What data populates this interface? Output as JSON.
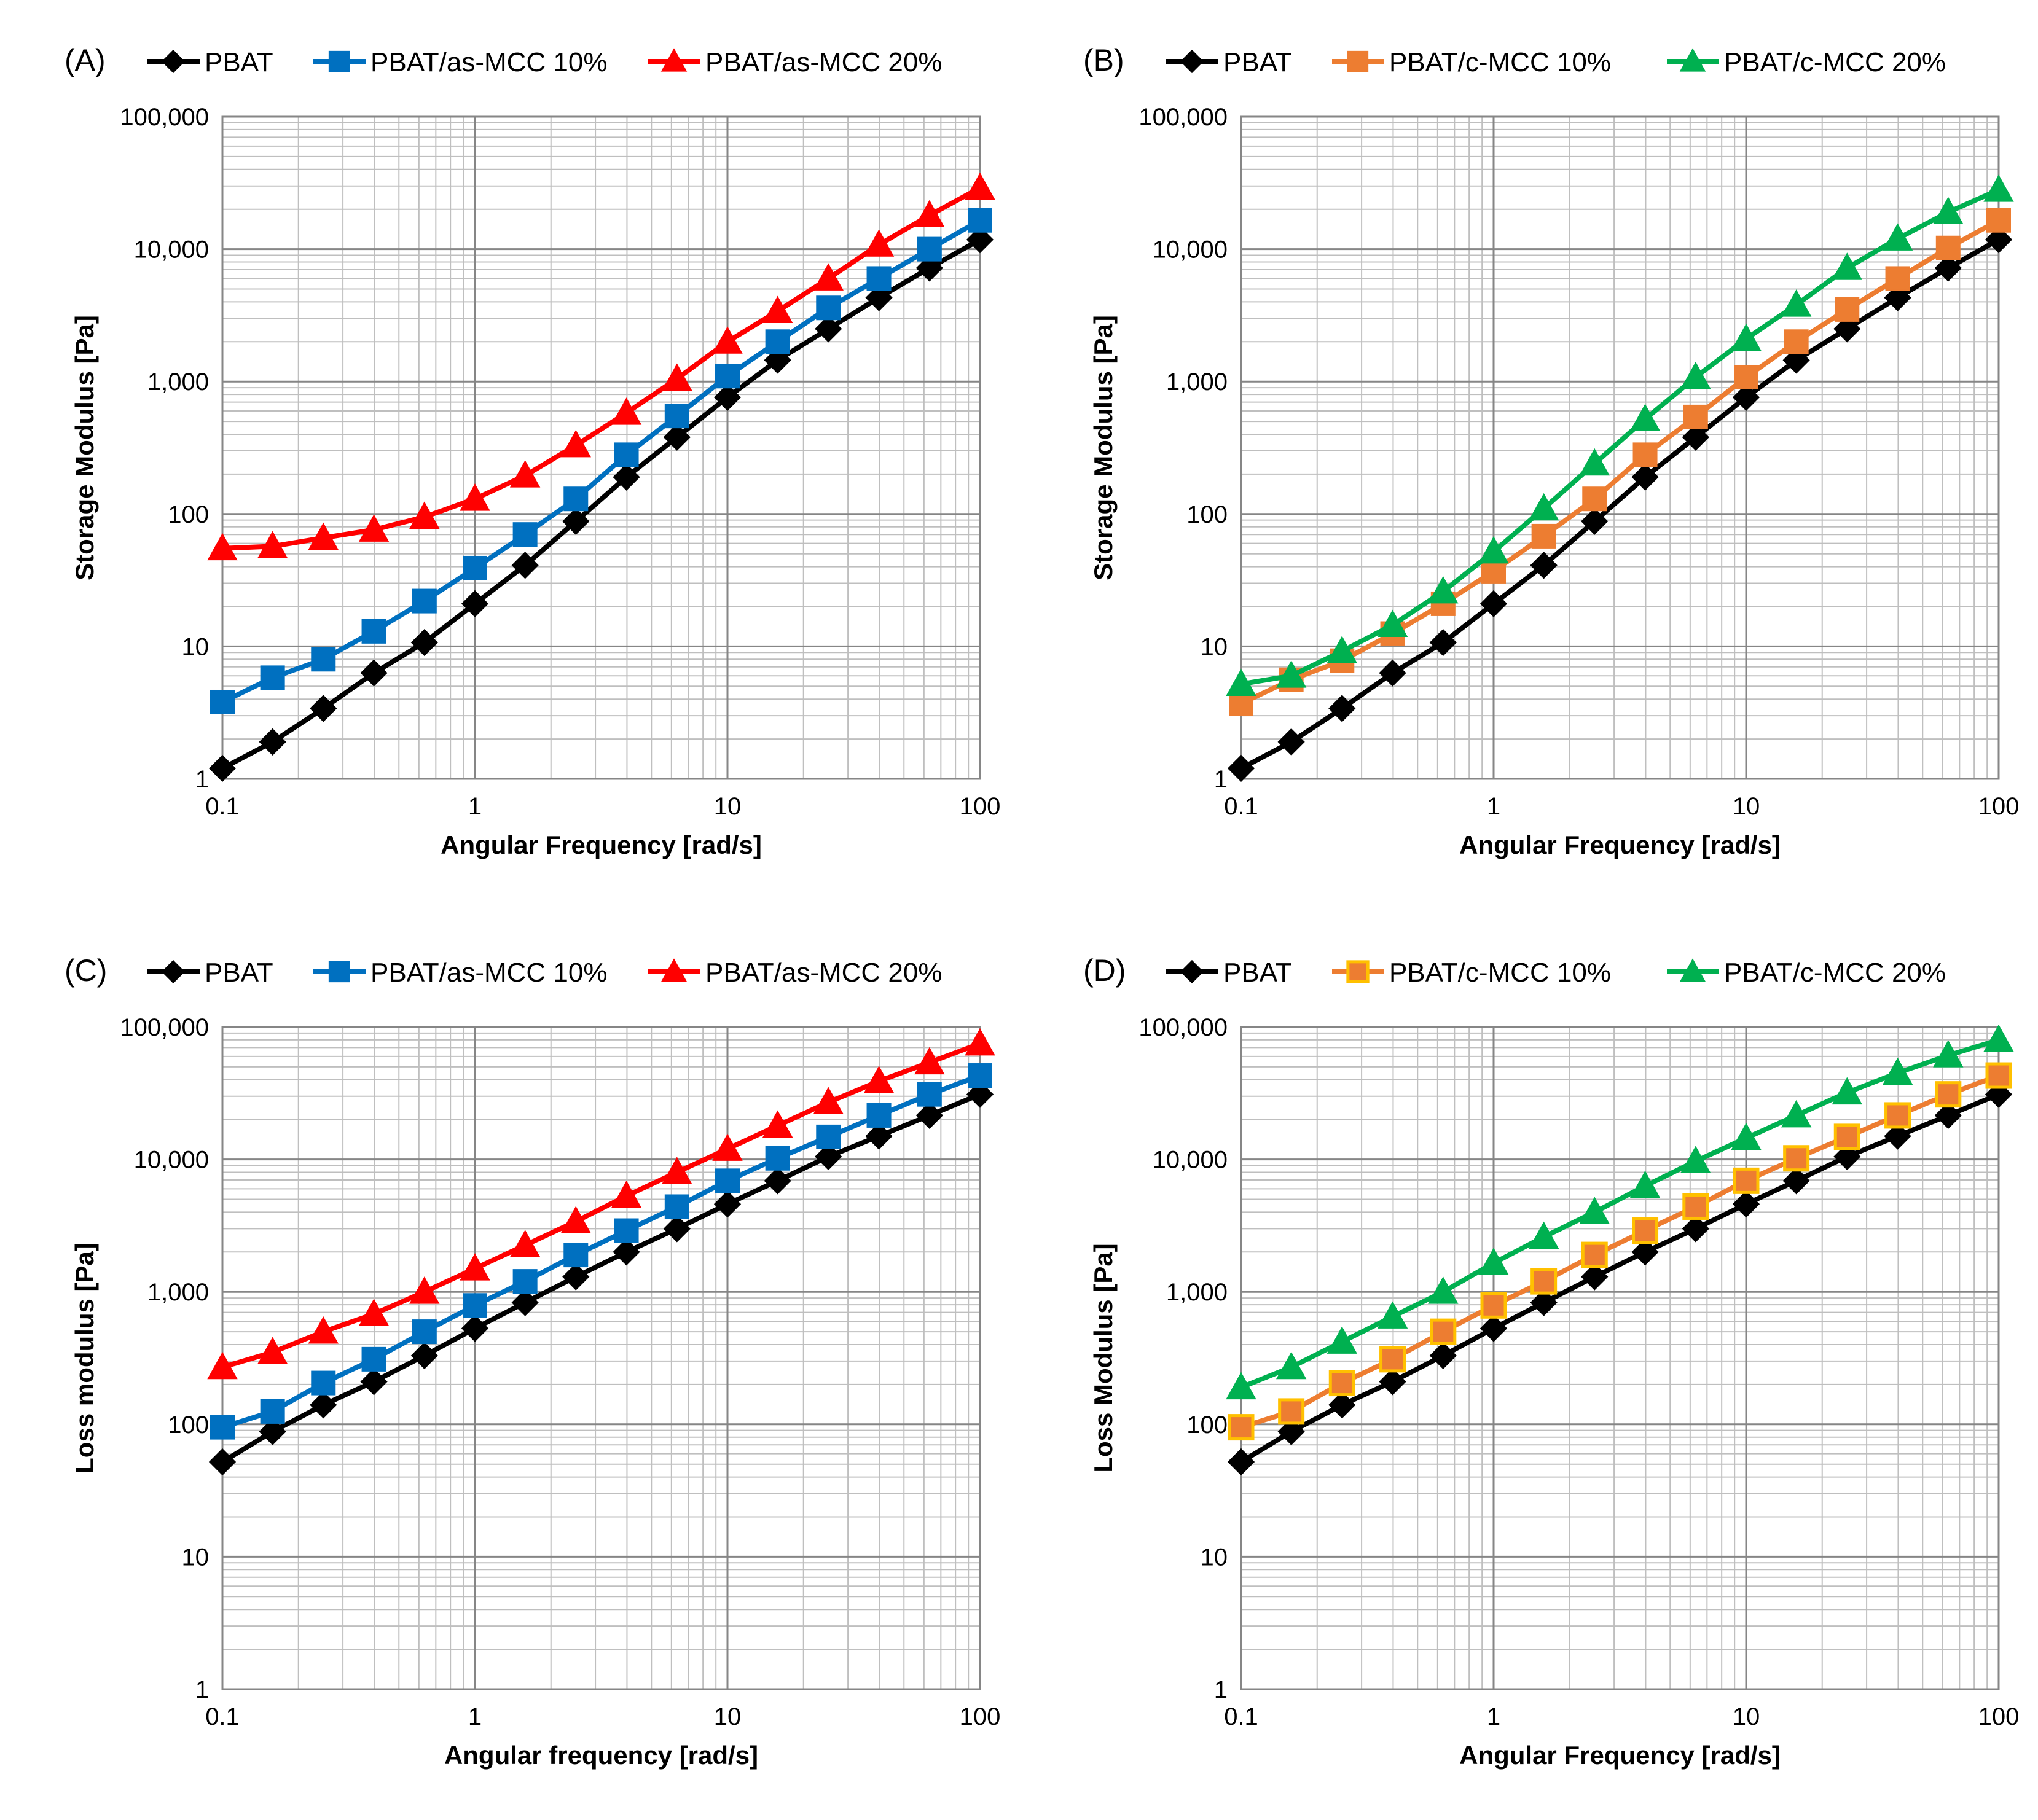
{
  "chart_data": [
    {
      "type": "line",
      "panel_label": "(A)",
      "xlabel": "Angular Frequency [rad/s]",
      "ylabel": "Storage Modulus [Pa]",
      "xscale": "log",
      "yscale": "log",
      "xlim": [
        0.1,
        100
      ],
      "ylim": [
        1,
        100000
      ],
      "xtick_labels": [
        "0.1",
        "1",
        "10",
        "100"
      ],
      "ytick_labels": [
        "1",
        "10",
        "100",
        "1,000",
        "10,000",
        "100,000"
      ],
      "grid": true,
      "legend_position": "top",
      "x": [
        0.1,
        0.158,
        0.251,
        0.398,
        0.631,
        1,
        1.58,
        2.51,
        3.98,
        6.31,
        10,
        15.8,
        25.1,
        39.8,
        63.1,
        100
      ],
      "series": [
        {
          "name": "PBAT",
          "color": "#000000",
          "marker": "diamond",
          "values": [
            1.2,
            1.9,
            3.4,
            6.3,
            10.7,
            21,
            41,
            88,
            190,
            380,
            760,
            1450,
            2500,
            4300,
            7200,
            11800
          ]
        },
        {
          "name": "PBAT/as-MCC 10%",
          "color": "#0070C0",
          "marker": "square",
          "values": [
            3.8,
            5.8,
            8,
            13,
            22,
            39,
            70,
            130,
            280,
            550,
            1100,
            2000,
            3600,
            6000,
            10000,
            16500
          ]
        },
        {
          "name": "PBAT/as-MCC 20%",
          "color": "#FF0000",
          "marker": "triangle",
          "values": [
            55,
            57,
            66,
            76,
            95,
            130,
            195,
            330,
            580,
            1050,
            2000,
            3400,
            6000,
            10800,
            18000,
            29000
          ]
        }
      ]
    },
    {
      "type": "line",
      "panel_label": "(B)",
      "xlabel": "Angular Frequency [rad/s]",
      "ylabel": "Storage Modulus [Pa]",
      "xscale": "log",
      "yscale": "log",
      "xlim": [
        0.1,
        100
      ],
      "ylim": [
        1,
        100000
      ],
      "xtick_labels": [
        "0.1",
        "1",
        "10",
        "100"
      ],
      "ytick_labels": [
        "1",
        "10",
        "100",
        "1,000",
        "10,000",
        "100,000"
      ],
      "grid": true,
      "legend_position": "top",
      "x": [
        0.1,
        0.158,
        0.251,
        0.398,
        0.631,
        1,
        1.58,
        2.51,
        3.98,
        6.31,
        10,
        15.8,
        25.1,
        39.8,
        63.1,
        100
      ],
      "series": [
        {
          "name": "PBAT",
          "color": "#000000",
          "marker": "diamond",
          "values": [
            1.2,
            1.9,
            3.4,
            6.3,
            10.7,
            21,
            41,
            88,
            190,
            380,
            760,
            1450,
            2500,
            4300,
            7200,
            11800
          ]
        },
        {
          "name": "PBAT/c-MCC 10%",
          "color": "#ED7D31",
          "marker": "square",
          "values": [
            3.7,
            5.6,
            7.8,
            12.5,
            21,
            37,
            68,
            130,
            280,
            540,
            1080,
            2000,
            3500,
            6000,
            10200,
            16500
          ]
        },
        {
          "name": "PBAT/c-MCC 20%",
          "color": "#00B050",
          "marker": "triangle",
          "values": [
            5.2,
            6,
            9.2,
            14.5,
            26,
            52,
            110,
            240,
            520,
            1080,
            2100,
            3800,
            7200,
            12000,
            19000,
            28000
          ]
        }
      ]
    },
    {
      "type": "line",
      "panel_label": "(C)",
      "xlabel": "Angular frequency [rad/s]",
      "ylabel": "Loss modulus [Pa]",
      "xscale": "log",
      "yscale": "log",
      "xlim": [
        0.1,
        100
      ],
      "ylim": [
        1,
        100000
      ],
      "xtick_labels": [
        "0.1",
        "1",
        "10",
        "100"
      ],
      "ytick_labels": [
        "1",
        "10",
        "100",
        "1,000",
        "10,000",
        "100,000"
      ],
      "grid": true,
      "legend_position": "top",
      "x": [
        0.1,
        0.158,
        0.251,
        0.398,
        0.631,
        1,
        1.58,
        2.51,
        3.98,
        6.31,
        10,
        15.8,
        25.1,
        39.8,
        63.1,
        100
      ],
      "series": [
        {
          "name": "PBAT",
          "color": "#000000",
          "marker": "diamond",
          "values": [
            52,
            88,
            140,
            210,
            330,
            530,
            830,
            1300,
            2000,
            3000,
            4600,
            6900,
            10500,
            15000,
            21500,
            31000
          ]
        },
        {
          "name": "PBAT/as-MCC 10%",
          "color": "#0070C0",
          "marker": "square",
          "values": [
            95,
            125,
            205,
            310,
            500,
            790,
            1200,
            1900,
            2900,
            4400,
            6900,
            10200,
            14800,
            21500,
            31000,
            43000
          ]
        },
        {
          "name": "PBAT/as-MCC 20%",
          "color": "#FF0000",
          "marker": "triangle",
          "values": [
            270,
            350,
            500,
            680,
            1000,
            1500,
            2250,
            3400,
            5300,
            8000,
            12000,
            18000,
            27000,
            39000,
            54000,
            75000
          ]
        }
      ]
    },
    {
      "type": "line",
      "panel_label": "(D)",
      "xlabel": "Angular Frequency [rad/s]",
      "ylabel": "Loss Modulus [Pa]",
      "xscale": "log",
      "yscale": "log",
      "xlim": [
        0.1,
        100
      ],
      "ylim": [
        1,
        100000
      ],
      "xtick_labels": [
        "0.1",
        "1",
        "10",
        "100"
      ],
      "ytick_labels": [
        "1",
        "10",
        "100",
        "1,000",
        "10,000",
        "100,000"
      ],
      "grid": true,
      "legend_position": "top",
      "x": [
        0.1,
        0.158,
        0.251,
        0.398,
        0.631,
        1,
        1.58,
        2.51,
        3.98,
        6.31,
        10,
        15.8,
        25.1,
        39.8,
        63.1,
        100
      ],
      "series": [
        {
          "name": "PBAT",
          "color": "#000000",
          "marker": "diamond",
          "values": [
            52,
            88,
            140,
            210,
            330,
            530,
            830,
            1300,
            2000,
            3000,
            4600,
            6900,
            10500,
            15000,
            21500,
            31000
          ]
        },
        {
          "name": "PBAT/c-MCC 10%",
          "color": "#ED7D31",
          "marker": "square",
          "marker_edge": "#FFC000",
          "values": [
            95,
            125,
            205,
            310,
            500,
            790,
            1200,
            1900,
            2900,
            4400,
            6900,
            10200,
            14800,
            21500,
            31000,
            43000
          ]
        },
        {
          "name": "PBAT/c-MCC 20%",
          "color": "#00B050",
          "marker": "triangle",
          "values": [
            190,
            270,
            420,
            650,
            1000,
            1650,
            2600,
            4000,
            6300,
            9700,
            14500,
            21500,
            32000,
            45000,
            61000,
            80000
          ]
        }
      ]
    }
  ]
}
